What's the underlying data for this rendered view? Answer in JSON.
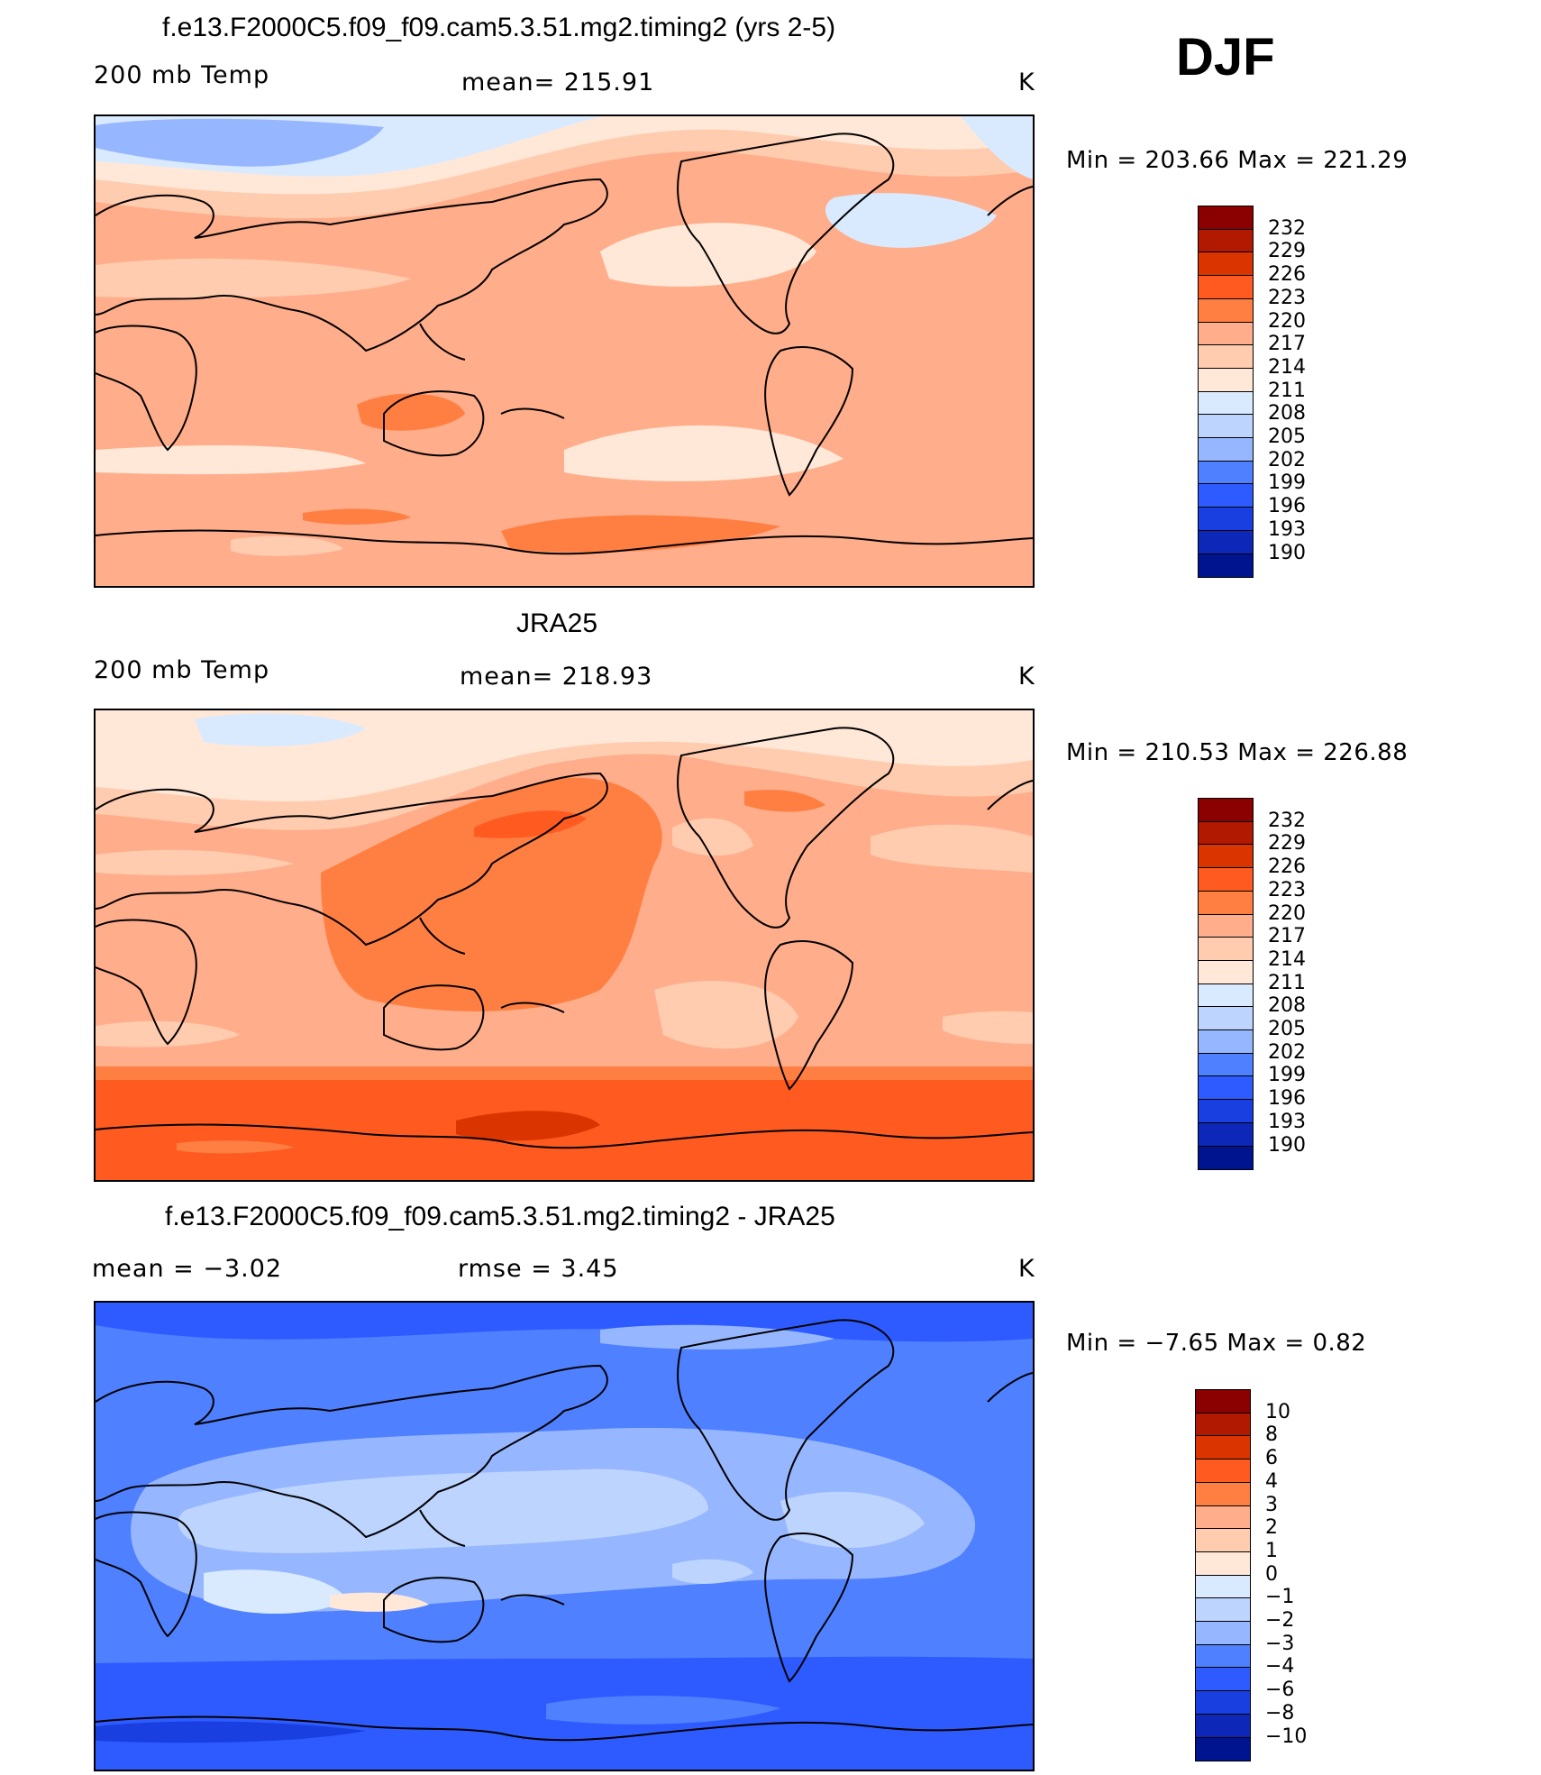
{
  "header": {
    "season": "DJF"
  },
  "panels": [
    {
      "id": "model",
      "title": "f.e13.F2000C5.f09_f09.cam5.3.51.mg2.timing2 (yrs 2-5)",
      "left_label": "200 mb Temp",
      "center_label": "mean=  215.91",
      "units": "K",
      "minmax": "Min  =  203.66  Max  =  221.29",
      "colorbar_labels": [
        "232",
        "229",
        "226",
        "223",
        "220",
        "217",
        "214",
        "211",
        "208",
        "205",
        "202",
        "199",
        "196",
        "193",
        "190"
      ],
      "colors": {
        "base": "#FFAD8A",
        "coastline": "#000000"
      }
    },
    {
      "id": "obs",
      "title": "JRA25",
      "left_label": "200 mb Temp",
      "center_label": "mean=  218.93",
      "units": "K",
      "minmax": "Min  =  210.53  Max  =  226.88",
      "colorbar_labels": [
        "232",
        "229",
        "226",
        "223",
        "220",
        "217",
        "214",
        "211",
        "208",
        "205",
        "202",
        "199",
        "196",
        "193",
        "190"
      ],
      "colors": {
        "base": "#FFAD8A",
        "coastline": "#000000"
      }
    },
    {
      "id": "diff",
      "title": "f.e13.F2000C5.f09_f09.cam5.3.51.mg2.timing2 - JRA25",
      "left_label": "mean  =     −3.02",
      "center_label": "rmse  =     3.45",
      "units": "K",
      "minmax": "Min  =    −7.65  Max  =      0.82",
      "colorbar_labels": [
        "10",
        "8",
        "6",
        "4",
        "3",
        "2",
        "1",
        "0",
        "−1",
        "−2",
        "−3",
        "−4",
        "−6",
        "−8",
        "−10"
      ],
      "colors": {
        "base": "#4F80FF",
        "coastline": "#000000"
      }
    }
  ],
  "palette": [
    "#8B0000",
    "#B11A00",
    "#DA3400",
    "#FF5A1F",
    "#FF7F42",
    "#FFAD8A",
    "#FFCCB0",
    "#FFE8D8",
    "#D9EAFF",
    "#BDD4FF",
    "#96B7FF",
    "#4F80FF",
    "#2E5BFF",
    "#1A3FE0",
    "#0D28B8",
    "#001490"
  ]
}
